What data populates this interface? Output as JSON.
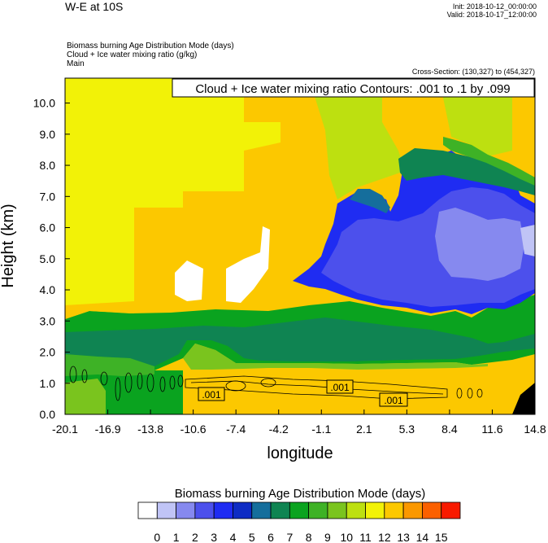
{
  "header": {
    "title": "W-E at 10S",
    "init": "Init: 2018-10-12_00:00:00",
    "valid": "Valid: 2018-10-17_12:00:00",
    "field_1": "Biomass burning Age Distribution Mode   (days)",
    "field_2": "Cloud + Ice water mixing ratio   (g/kg)",
    "field_3": "Main",
    "cross_section": "Cross-Section: (130,327) to (454,327)"
  },
  "chart_data": {
    "type": "heatmap",
    "title": "W-E at 10S",
    "contour_label": "Cloud + Ice water mixing ratio Contours: .001 to .1 by .099",
    "contour_values": [
      ".001",
      ".001",
      ".001"
    ],
    "xlabel": "longitude",
    "ylabel": "Height (km)",
    "xlim": [
      -20.1,
      14.8
    ],
    "ylim": [
      0.0,
      10.8
    ],
    "x_ticks": [
      "-20.1",
      "-16.9",
      "-13.8",
      "-10.6",
      "-7.4",
      "-4.2",
      "-1.1",
      "2.1",
      "5.3",
      "8.4",
      "11.6",
      "14.8"
    ],
    "y_ticks": [
      "0.0",
      "1.0",
      "2.0",
      "3.0",
      "4.0",
      "5.0",
      "6.0",
      "7.0",
      "8.0",
      "9.0",
      "10.0"
    ],
    "colorbar": {
      "title": "Biomass burning Age Distribution Mode  (days)",
      "labels": [
        "0",
        "1",
        "2",
        "3",
        "4",
        "5",
        "6",
        "7",
        "8",
        "9",
        "10",
        "11",
        "12",
        "13",
        "14",
        "15"
      ],
      "colors": [
        "#ffffff",
        "#c0c4f6",
        "#8689ef",
        "#4c50ec",
        "#1f2cf2",
        "#0e2cc4",
        "#156e9c",
        "#0f8452",
        "#0aa31f",
        "#3eb226",
        "#7ac41e",
        "#bde010",
        "#f2f207",
        "#fcc800",
        "#fb9800",
        "#fb6000",
        "#f81a00"
      ]
    }
  }
}
